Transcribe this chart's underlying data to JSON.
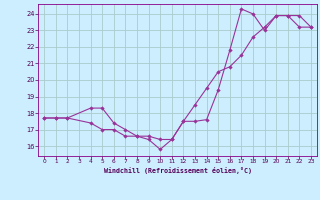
{
  "xlabel": "Windchill (Refroidissement éolien,°C)",
  "xlim": [
    -0.5,
    23.5
  ],
  "ylim": [
    15.4,
    24.6
  ],
  "xticks": [
    0,
    1,
    2,
    3,
    4,
    5,
    6,
    7,
    8,
    9,
    10,
    11,
    12,
    13,
    14,
    15,
    16,
    17,
    18,
    19,
    20,
    21,
    22,
    23
  ],
  "yticks": [
    16,
    17,
    18,
    19,
    20,
    21,
    22,
    23,
    24
  ],
  "bg_color": "#cceeff",
  "line_color": "#993399",
  "grid_color": "#aacccc",
  "line1_x": [
    0,
    1,
    2,
    4,
    5,
    6,
    7,
    8,
    9,
    10,
    11,
    12,
    13,
    14,
    15,
    16,
    17,
    18,
    19,
    20,
    21,
    22,
    23
  ],
  "line1_y": [
    17.7,
    17.7,
    17.7,
    18.3,
    18.3,
    17.4,
    17.0,
    16.6,
    16.4,
    15.8,
    16.4,
    17.5,
    17.5,
    17.6,
    19.4,
    21.8,
    24.3,
    24.0,
    23.0,
    23.9,
    23.9,
    23.9,
    23.2
  ],
  "line2_x": [
    0,
    1,
    2,
    4,
    5,
    6,
    7,
    8,
    9,
    10,
    11,
    12,
    13,
    14,
    15,
    16,
    17,
    18,
    19,
    20,
    21,
    22,
    23
  ],
  "line2_y": [
    17.7,
    17.7,
    17.7,
    17.4,
    17.0,
    17.0,
    16.6,
    16.6,
    16.6,
    16.4,
    16.4,
    17.5,
    18.5,
    19.5,
    20.5,
    20.8,
    21.5,
    22.6,
    23.2,
    23.9,
    23.9,
    23.2,
    23.2
  ]
}
